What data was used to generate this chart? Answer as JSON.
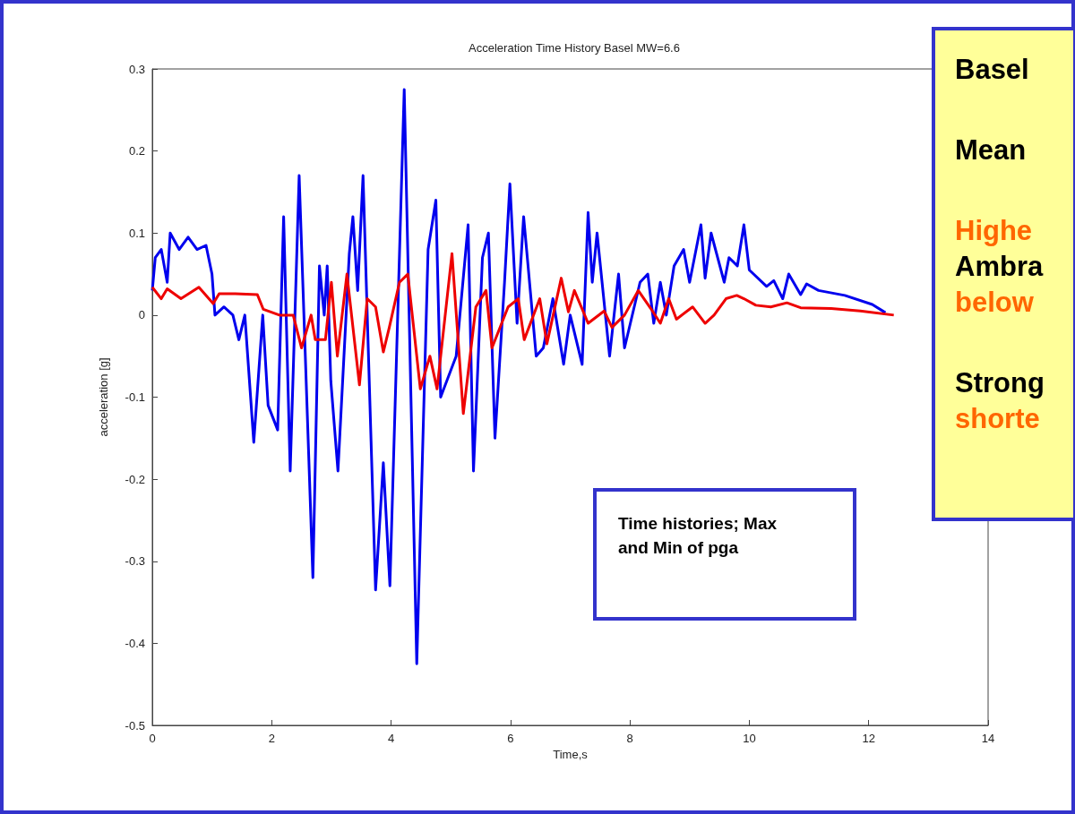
{
  "chart_data": {
    "type": "line",
    "title": "Acceleration Time History Basel MW=6.6",
    "xlabel": "Time,s",
    "ylabel": "acceleration [g]",
    "xlim": [
      0,
      14
    ],
    "xticks": [
      0,
      2,
      4,
      6,
      8,
      10,
      12,
      14
    ],
    "ylim": [
      -0.5,
      0.3
    ],
    "yticks": [
      -0.5,
      -0.4,
      -0.3,
      -0.2,
      -0.1,
      0,
      0.1,
      0.2,
      0.3
    ],
    "grid": false,
    "series": [
      {
        "color": "#0000ee",
        "x": [
          0,
          0.05,
          0.15,
          0.25,
          0.3,
          0.45,
          0.6,
          0.75,
          0.9,
          1.0,
          1.05,
          1.2,
          1.35,
          1.45,
          1.55,
          1.7,
          1.85,
          1.94,
          2.1,
          2.2,
          2.31,
          2.46,
          2.69,
          2.8,
          2.88,
          2.93,
          2.99,
          3.11,
          3.3,
          3.36,
          3.44,
          3.53,
          3.74,
          3.87,
          3.98,
          4.22,
          4.43,
          4.62,
          4.75,
          4.83,
          5.09,
          5.29,
          5.38,
          5.53,
          5.63,
          5.74,
          5.9,
          5.99,
          6.11,
          6.22,
          6.43,
          6.55,
          6.71,
          6.89,
          7.0,
          7.2,
          7.3,
          7.37,
          7.45,
          7.66,
          7.81,
          7.91,
          8.17,
          8.3,
          8.4,
          8.51,
          8.61,
          8.74,
          8.9,
          9.0,
          9.19,
          9.26,
          9.36,
          9.58,
          9.66,
          9.8,
          9.91,
          10.0,
          10.29,
          10.41,
          10.56,
          10.66,
          10.86,
          10.96,
          11.16,
          11.6,
          12.06,
          12.28
        ],
        "values": [
          0.03,
          0.07,
          0.08,
          0.04,
          0.1,
          0.08,
          0.095,
          0.08,
          0.085,
          0.05,
          0.0,
          0.01,
          0.0,
          -0.03,
          0.0,
          -0.155,
          0.0,
          -0.11,
          -0.14,
          0.12,
          -0.19,
          0.17,
          -0.32,
          0.06,
          0.0,
          0.06,
          -0.08,
          -0.19,
          0.075,
          0.12,
          0.03,
          0.17,
          -0.335,
          -0.18,
          -0.33,
          0.275,
          -0.425,
          0.08,
          0.14,
          -0.1,
          -0.05,
          0.11,
          -0.19,
          0.07,
          0.1,
          -0.15,
          0.04,
          0.16,
          -0.01,
          0.12,
          -0.05,
          -0.04,
          0.02,
          -0.06,
          0.0,
          -0.06,
          0.125,
          0.04,
          0.1,
          -0.05,
          0.05,
          -0.04,
          0.04,
          0.05,
          -0.01,
          0.04,
          0.0,
          0.06,
          0.08,
          0.04,
          0.11,
          0.045,
          0.1,
          0.04,
          0.07,
          0.06,
          0.11,
          0.055,
          0.035,
          0.042,
          0.02,
          0.05,
          0.025,
          0.038,
          0.03,
          0.024,
          0.013,
          0.003
        ]
      },
      {
        "color": "#ee0000",
        "x": [
          0,
          0.15,
          0.25,
          0.48,
          0.78,
          1.02,
          1.12,
          1.39,
          1.76,
          1.86,
          2.13,
          2.36,
          2.5,
          2.66,
          2.73,
          2.9,
          3.0,
          3.1,
          3.26,
          3.47,
          3.6,
          3.74,
          3.87,
          3.97,
          4.14,
          4.28,
          4.49,
          4.65,
          4.77,
          5.02,
          5.21,
          5.42,
          5.59,
          5.69,
          5.96,
          6.13,
          6.23,
          6.49,
          6.61,
          6.85,
          6.97,
          7.07,
          7.3,
          7.57,
          7.7,
          7.91,
          8.14,
          8.35,
          8.51,
          8.65,
          8.78,
          9.05,
          9.26,
          9.41,
          9.61,
          9.79,
          9.91,
          10.11,
          10.36,
          10.63,
          10.86,
          11.37,
          11.86,
          12.42
        ],
        "values": [
          0.034,
          0.02,
          0.032,
          0.02,
          0.034,
          0.014,
          0.026,
          0.026,
          0.025,
          0.007,
          0.0,
          0.0,
          -0.04,
          0.0,
          -0.03,
          -0.03,
          0.04,
          -0.05,
          0.05,
          -0.085,
          0.02,
          0.01,
          -0.045,
          -0.015,
          0.04,
          0.05,
          -0.09,
          -0.05,
          -0.09,
          0.075,
          -0.12,
          0.01,
          0.03,
          -0.04,
          0.01,
          0.02,
          -0.03,
          0.02,
          -0.035,
          0.045,
          0.004,
          0.03,
          -0.01,
          0.005,
          -0.015,
          0.0,
          0.03,
          0.008,
          -0.01,
          0.02,
          -0.005,
          0.01,
          -0.01,
          0.0,
          0.02,
          0.024,
          0.02,
          0.012,
          0.01,
          0.015,
          0.009,
          0.008,
          0.005,
          0.0
        ]
      }
    ],
    "annotations": [
      "Time histories; Max and Min of pga",
      "Basel",
      "Mean",
      "Highe",
      "Ambra",
      "below",
      "Strong",
      "shorte"
    ]
  }
}
